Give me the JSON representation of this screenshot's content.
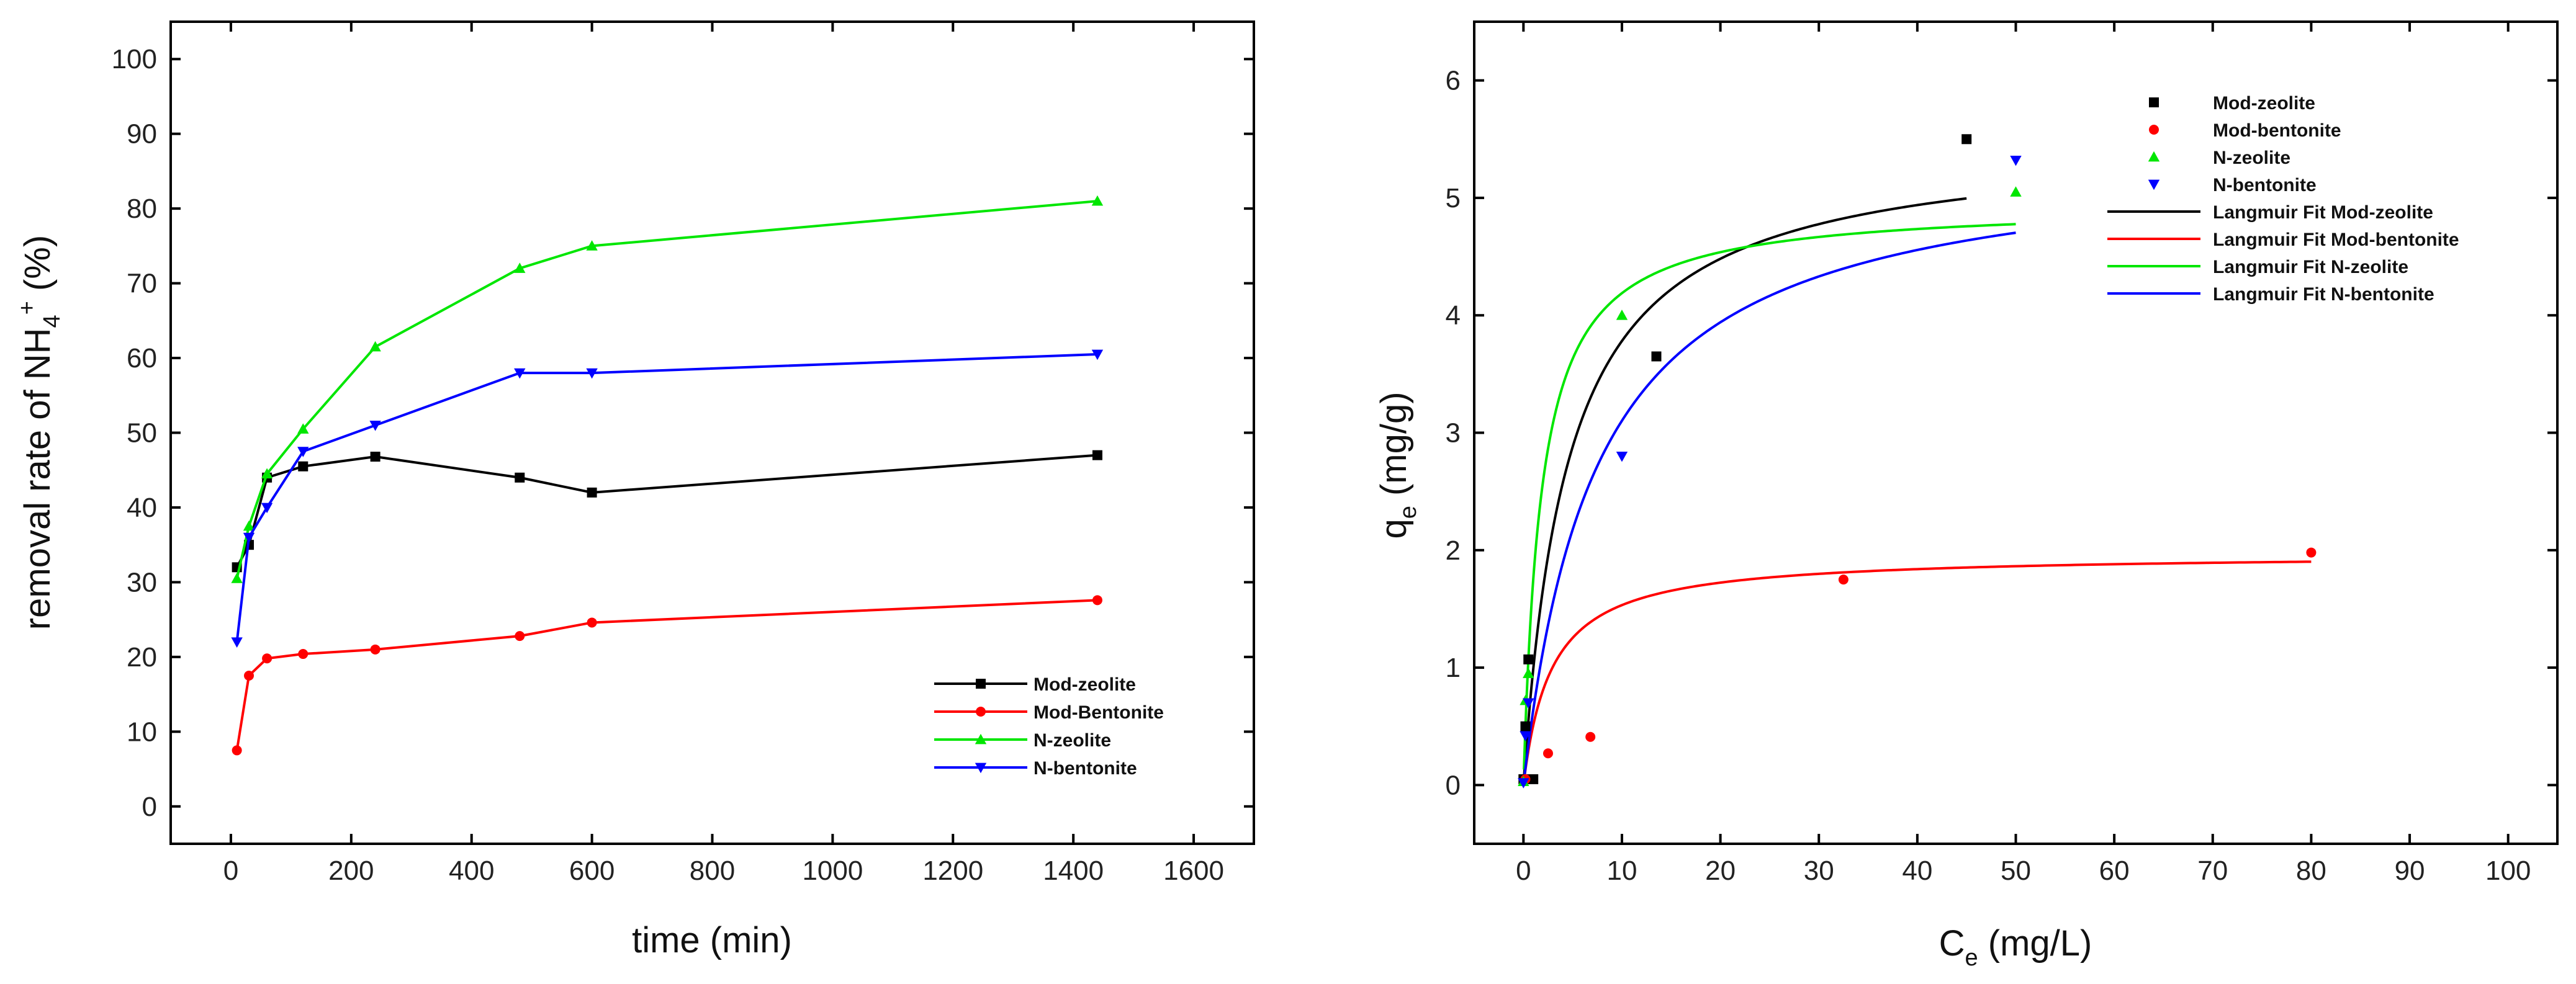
{
  "chart_data": [
    {
      "type": "line",
      "name": "removal-kinetics",
      "xlabel": "time (min)",
      "ylabel": {
        "main": "removal rate of NH",
        "sub": "4",
        "sup": "+",
        "unit": " (%)"
      },
      "xlim": [
        -100,
        1700
      ],
      "ylim": [
        -5,
        105
      ],
      "xticks": [
        0,
        200,
        400,
        600,
        800,
        1000,
        1200,
        1400,
        1600
      ],
      "yticks": [
        0,
        10,
        20,
        30,
        40,
        50,
        60,
        70,
        80,
        90,
        100
      ],
      "legend_position": "bottom-right",
      "series": [
        {
          "name": "Mod-zeolite",
          "color": "#000000",
          "marker": "square",
          "x": [
            10,
            30,
            60,
            120,
            240,
            480,
            600,
            1440
          ],
          "y": [
            32,
            35,
            44,
            45.5,
            46.8,
            44,
            42,
            47
          ]
        },
        {
          "name": "Mod-Bentonite",
          "color": "#ff0000",
          "marker": "circle",
          "x": [
            10,
            30,
            60,
            120,
            240,
            480,
            600,
            1440
          ],
          "y": [
            7.5,
            17.5,
            19.8,
            20.4,
            21,
            22.8,
            24.6,
            27.6
          ]
        },
        {
          "name": "N-zeolite",
          "color": "#00e600",
          "marker": "triangle-up",
          "x": [
            10,
            30,
            60,
            120,
            240,
            480,
            600,
            1440
          ],
          "y": [
            30.5,
            37.5,
            44.5,
            50.5,
            61.5,
            72,
            75,
            81
          ]
        },
        {
          "name": "N-bentonite",
          "color": "#0000ff",
          "marker": "triangle-down",
          "x": [
            10,
            30,
            60,
            120,
            240,
            480,
            600,
            1440
          ],
          "y": [
            22,
            36,
            40,
            47.5,
            51,
            58,
            58,
            60.5
          ]
        }
      ]
    },
    {
      "type": "scatter",
      "name": "langmuir-isotherm",
      "xlabel": {
        "main": "C",
        "sub": "e",
        "unit": " (mg/L)"
      },
      "ylabel": {
        "main": "q",
        "sub": "e",
        "unit": " (mg/g)"
      },
      "xlim": [
        -5,
        105
      ],
      "ylim": [
        -0.5,
        6.5
      ],
      "xticks": [
        0,
        10,
        20,
        30,
        40,
        50,
        60,
        70,
        80,
        90,
        100
      ],
      "yticks": [
        0,
        1,
        2,
        3,
        4,
        5,
        6
      ],
      "legend_position": "top-center",
      "series": [
        {
          "name": "Mod-zeolite",
          "color": "#000000",
          "marker": "square",
          "x": [
            0,
            0.2,
            0.5,
            1,
            13.5,
            45
          ],
          "y": [
            0.05,
            0.5,
            1.07,
            0.05,
            3.65,
            5.5
          ]
        },
        {
          "name": "Mod-bentonite",
          "color": "#ff0000",
          "marker": "circle",
          "x": [
            0.2,
            2.5,
            6.8,
            32.5,
            80
          ],
          "y": [
            0.05,
            0.27,
            0.41,
            1.75,
            1.98
          ]
        },
        {
          "name": "N-zeolite",
          "color": "#00e600",
          "marker": "triangle-up",
          "x": [
            0,
            0.2,
            0.5,
            10,
            50
          ],
          "y": [
            0.03,
            0.72,
            0.95,
            4.0,
            5.05
          ]
        },
        {
          "name": "N-bentonite",
          "color": "#0000ff",
          "marker": "triangle-down",
          "x": [
            0,
            0.2,
            0.5,
            10,
            50
          ],
          "y": [
            0.02,
            0.42,
            0.7,
            2.8,
            5.32
          ]
        }
      ],
      "fits": [
        {
          "name": "Langmuir Fit Mod-zeolite",
          "color": "#000000",
          "qmax": 5.5,
          "K": 0.22,
          "xmax": 45
        },
        {
          "name": "Langmuir Fit Mod-bentonite",
          "color": "#ff0000",
          "qmax": 1.97,
          "K": 0.35,
          "xmax": 80
        },
        {
          "name": "Langmuir Fit N-zeolite",
          "color": "#00e600",
          "qmax": 4.95,
          "K": 0.55,
          "xmax": 50
        },
        {
          "name": "Langmuir Fit N-bentonite",
          "color": "#0000ff",
          "qmax": 5.4,
          "K": 0.135,
          "xmax": 50
        }
      ]
    }
  ]
}
